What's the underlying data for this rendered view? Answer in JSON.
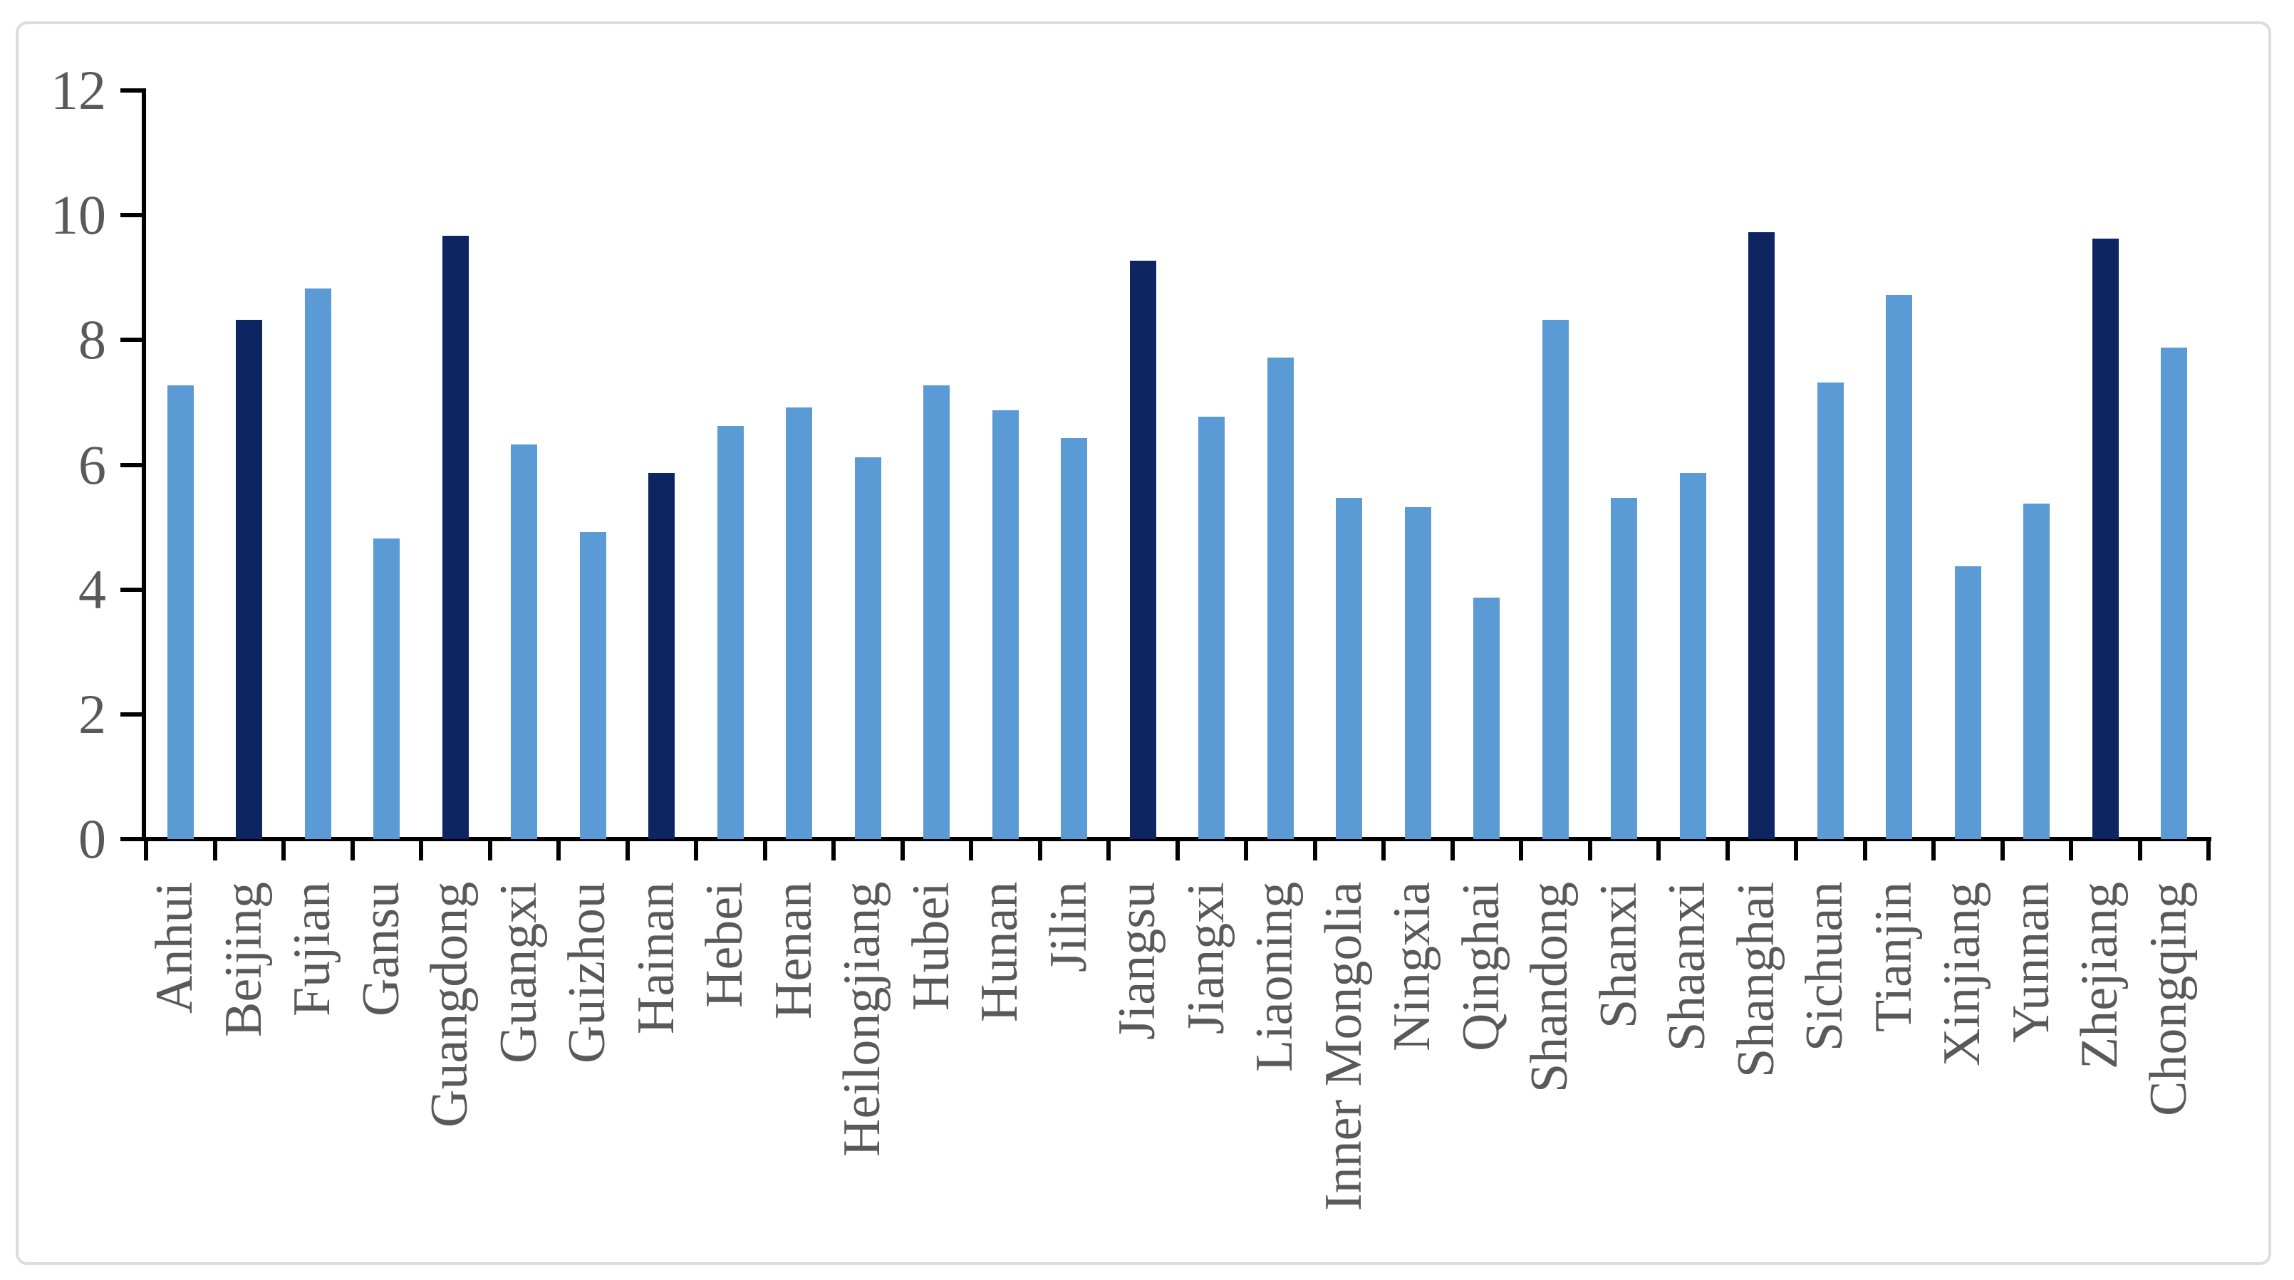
{
  "chart_data": {
    "type": "bar",
    "title": "",
    "xlabel": "",
    "ylabel": "",
    "categories": [
      "Anhui",
      "Beijing",
      "Fujian",
      "Gansu",
      "Guangdong",
      "Guangxi",
      "Guizhou",
      "Hainan",
      "Hebei",
      "Henan",
      "Heilongjiang",
      "Hubei",
      "Hunan",
      "Jilin",
      "Jiangsu",
      "Jiangxi",
      "Liaoning",
      "Inner Mongolia",
      "Ningxia",
      "Qinghai",
      "Shandong",
      "Shanxi",
      "Shaanxi",
      "Shanghai",
      "Sichuan",
      "Tianjin",
      "Xinjiang",
      "Yunnan",
      "Zhejiang",
      "Chongqing"
    ],
    "values": [
      7.25,
      8.3,
      8.8,
      4.8,
      9.65,
      6.3,
      4.9,
      5.85,
      6.6,
      6.9,
      6.1,
      7.25,
      6.85,
      6.4,
      9.25,
      6.75,
      7.7,
      5.45,
      5.3,
      3.85,
      8.3,
      5.45,
      5.85,
      9.7,
      7.3,
      8.7,
      4.35,
      5.35,
      9.6,
      7.85
    ],
    "highlighted_categories": [
      "Beijing",
      "Guangdong",
      "Hainan",
      "Jiangsu",
      "Shanghai",
      "Zhejiang"
    ],
    "yticks": [
      0,
      2,
      4,
      6,
      8,
      10,
      12
    ],
    "ylim": [
      0,
      12
    ],
    "grid": false,
    "legend_position": "none",
    "colors": {
      "bar_default": "#5B9BD5",
      "bar_highlight": "#0d2560",
      "axis": "#000000",
      "tick_label": "#595959",
      "frame_border": "#dcdcdc",
      "background": "#ffffff"
    }
  }
}
